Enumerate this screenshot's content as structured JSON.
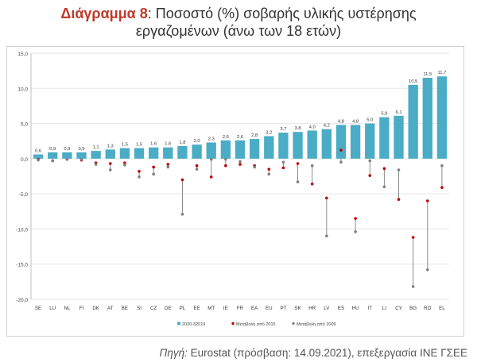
{
  "title": {
    "label": "Διάγραμμα 8",
    "text": ": Ποσοστό (%) σοβαρής υλικής υστέρησης",
    "line2": "εργαζομένων (άνω των 18 ετών)"
  },
  "source": {
    "label": "Πηγή:",
    "text": " Eurostat (πρόσβαση: 14.09.2021), επεξεργασία ΙΝΕ ΓΣΕΕ"
  },
  "colors": {
    "bar": "#4bacc6",
    "change2015": "#c00000",
    "change2009": "#808080",
    "connector": "#7f7f7f",
    "grid": "#e6e6e6"
  },
  "chart_data": {
    "type": "bar",
    "categories": [
      "SE",
      "LU",
      "NL",
      "FI",
      "DK",
      "AT",
      "BE",
      "SI",
      "CZ",
      "DE",
      "PL",
      "EE",
      "MT",
      "IE",
      "FR",
      "EA",
      "EU",
      "PT",
      "SK",
      "HR",
      "LV",
      "ES",
      "HU",
      "IT",
      "LI",
      "CY",
      "BG",
      "RO",
      "EL"
    ],
    "ylim": [
      -20,
      15
    ],
    "yticks": [
      "15,0",
      "10,0",
      "5,0",
      "0,0",
      "-5,0",
      "-10,0",
      "-15,0",
      "-20,0"
    ],
    "series": [
      {
        "name": "2020-§2019",
        "kind": "bar",
        "values": [
          0.6,
          0.9,
          0.9,
          0.9,
          1.1,
          1.3,
          1.5,
          1.5,
          1.6,
          1.6,
          1.8,
          2.0,
          2.3,
          2.6,
          2.6,
          2.8,
          3.2,
          3.7,
          3.8,
          4.0,
          4.2,
          4.8,
          4.8,
          5.0,
          5.9,
          6.1,
          10.5,
          11.5,
          11.7
        ],
        "labels": [
          "0,6",
          "0,9",
          "0,9",
          "0,9",
          "1,1",
          "1,3",
          "1,5",
          "1,5",
          "1,6",
          "1,6",
          "1,8",
          "2,0",
          "2,3",
          "2,6",
          "2,6",
          "2,8",
          "3,2",
          "3,7",
          "3,8",
          "4,0",
          "4,2",
          "4,8",
          "4,8",
          "5,0",
          "5,9",
          "6,1",
          "10,5",
          "11,5",
          "11,7"
        ]
      },
      {
        "name": "Μεταβολή από 2015",
        "kind": "point",
        "values": [
          -0.1,
          -0.3,
          -0.1,
          -0.2,
          -0.6,
          -0.7,
          -0.6,
          -1.8,
          -1.2,
          -0.8,
          -3.0,
          -1.0,
          -2.6,
          -1.0,
          -0.8,
          -1.0,
          -1.5,
          -1.3,
          -0.7,
          -3.6,
          -5.6,
          1.2,
          -8.5,
          -2.4,
          -1.4,
          -5.8,
          -11.2,
          -6.0,
          -4.1
        ]
      },
      {
        "name": "Μεταβολή από 2009",
        "kind": "point",
        "values": [
          -0.2,
          -0.3,
          -0.1,
          -0.1,
          -0.8,
          -1.6,
          -0.9,
          -2.6,
          -2.2,
          -1.2,
          -7.9,
          -1.5,
          -0.1,
          -0.1,
          -0.4,
          -1.2,
          -2.2,
          -0.5,
          -3.3,
          -1.0,
          -11.0,
          -0.5,
          -10.4,
          -0.3,
          -4.0,
          -1.6,
          -18.2,
          -15.8,
          -1.0
        ]
      }
    ],
    "legend_position": "bottom"
  }
}
